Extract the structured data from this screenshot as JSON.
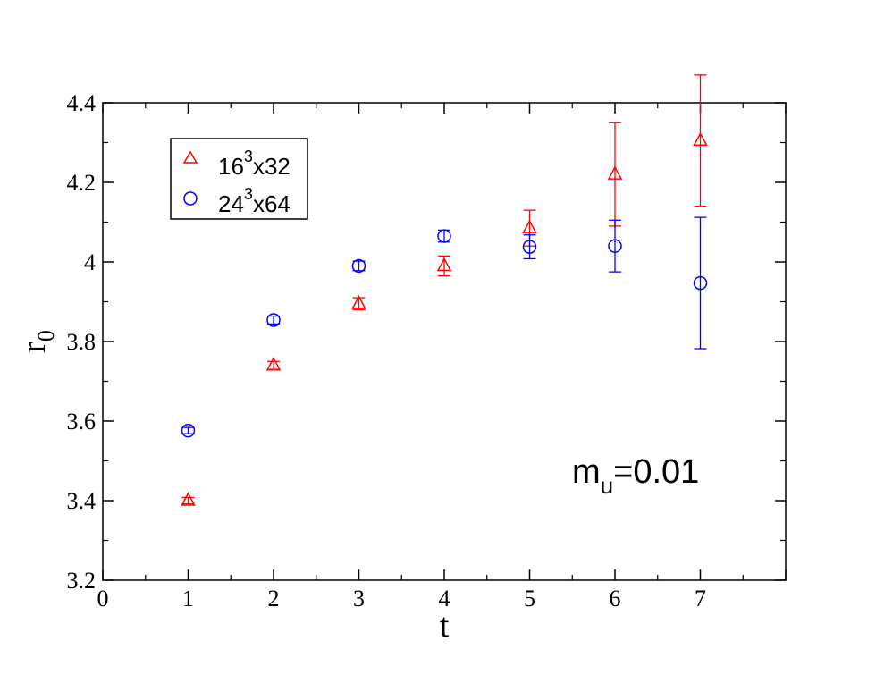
{
  "chart_data": {
    "type": "scatter",
    "title": "",
    "xlabel": "t",
    "ylabel": "r",
    "ylabel_sub": "0",
    "xlim": [
      0,
      8
    ],
    "ylim": [
      3.2,
      4.4
    ],
    "xticks": [
      "0",
      "1",
      "2",
      "3",
      "4",
      "5",
      "6",
      "7"
    ],
    "yticks": [
      "3.2",
      "3.4",
      "3.6",
      "3.8",
      "4",
      "4.2",
      "4.4"
    ],
    "grid": false,
    "legend_position": "top-left",
    "annotation": {
      "main": "m",
      "sub": "u",
      "rest": "=0.01"
    },
    "series": [
      {
        "name": "16",
        "name_sup": "3",
        "name_rest": "x32",
        "marker": "triangle",
        "color": "#ff0000",
        "x": [
          1,
          2,
          3,
          4,
          5,
          6,
          7
        ],
        "y": [
          3.4,
          3.74,
          3.895,
          3.99,
          4.085,
          4.22,
          4.305
        ],
        "err": [
          0.008,
          0.01,
          0.015,
          0.025,
          0.045,
          0.13,
          0.165
        ]
      },
      {
        "name": "24",
        "name_sup": "3",
        "name_rest": "x64",
        "marker": "circle",
        "color": "#0000ff",
        "x": [
          1,
          2,
          3,
          4,
          5,
          6,
          7
        ],
        "y": [
          3.576,
          3.854,
          3.99,
          4.065,
          4.038,
          4.04,
          3.947
        ],
        "err": [
          0.008,
          0.01,
          0.012,
          0.015,
          0.03,
          0.065,
          0.165
        ]
      }
    ]
  }
}
